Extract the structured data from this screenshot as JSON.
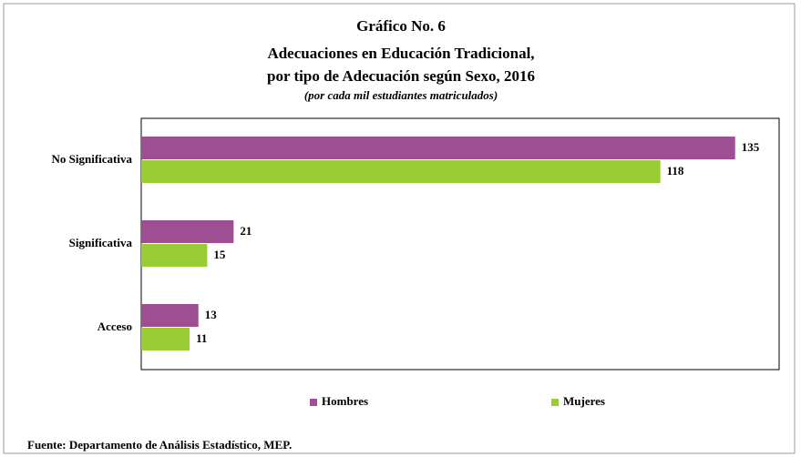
{
  "chart_data": {
    "type": "hbar",
    "title": "Gráfico No. 6",
    "subtitle_lines": [
      "Adecuaciones en Educación Tradicional,",
      "por tipo de Adecuación según Sexo, 2016"
    ],
    "note": "(por cada mil estudiantes matriculados)",
    "categories": [
      "No Significativa",
      "Significativa",
      "Acceso"
    ],
    "series": [
      {
        "name": "Hombres",
        "color": "#9e4f94",
        "values": [
          135,
          21,
          13
        ]
      },
      {
        "name": "Mujeres",
        "color": "#99cc33",
        "values": [
          118,
          15,
          11
        ]
      }
    ],
    "xlim": [
      0,
      145
    ],
    "source": "Fuente:  Departamento de Análisis Estadístico, MEP."
  }
}
